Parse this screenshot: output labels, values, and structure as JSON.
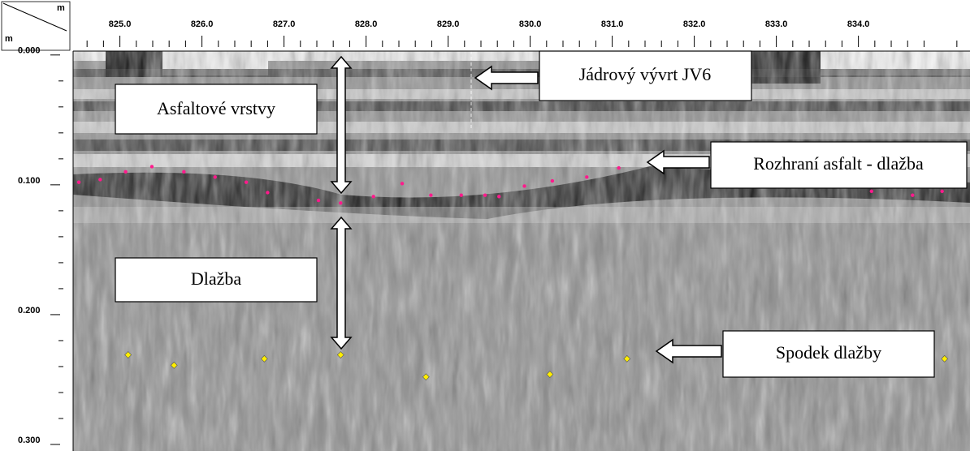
{
  "chart_data": {
    "type": "scatter",
    "x_label": "m",
    "y_label": "m",
    "xlim": [
      824.43,
      835.36
    ],
    "ylim": [
      -0.003,
      0.305
    ],
    "y_inverted": true,
    "xticks": [
      {
        "value": 825,
        "label": "825.0"
      },
      {
        "value": 826,
        "label": "826.0"
      },
      {
        "value": 827,
        "label": "827.0"
      },
      {
        "value": 828,
        "label": "828.0"
      },
      {
        "value": 829,
        "label": "829.0"
      },
      {
        "value": 830,
        "label": "830.0"
      },
      {
        "value": 831,
        "label": "831.0"
      },
      {
        "value": 832,
        "label": "832.0"
      },
      {
        "value": 833,
        "label": "833.0"
      },
      {
        "value": 834,
        "label": "834.0"
      }
    ],
    "xminorticks": [
      824.6,
      824.8,
      825.2,
      825.4,
      825.6,
      825.8,
      826.2,
      826.4,
      826.6,
      826.8,
      827.2,
      827.4,
      827.6,
      827.8,
      828.2,
      828.4,
      828.6,
      828.8,
      829.2,
      829.4,
      829.6,
      829.8,
      830.2,
      830.4,
      830.6,
      830.8,
      831.2,
      831.4,
      831.6,
      831.8,
      832.2,
      832.4,
      832.6,
      832.8,
      833.2,
      833.4,
      833.6,
      833.8,
      834.2,
      834.4,
      834.6,
      834.8,
      835.2
    ],
    "yticks": [
      {
        "value": 0,
        "label": "0.000"
      },
      {
        "value": 0.1,
        "label": "0.100"
      },
      {
        "value": 0.2,
        "label": "0.200"
      },
      {
        "value": 0.3,
        "label": "0.300"
      }
    ],
    "yminorticks": [
      0.02,
      0.04,
      0.06,
      0.08,
      0.12,
      0.14,
      0.16,
      0.18,
      0.22,
      0.24,
      0.26,
      0.28
    ],
    "series": [
      {
        "color": "#ff1a8c",
        "x": [
          824.5,
          824.76,
          825.07,
          825.39,
          825.78,
          826.16,
          826.54,
          826.8,
          827.42,
          827.69,
          828.09,
          828.44,
          828.79,
          829.16,
          829.45,
          829.62,
          829.93,
          830.27,
          830.69,
          831.08,
          834.16,
          834.66,
          835.02
        ],
        "values": [
          0.098,
          0.096,
          0.09,
          0.086,
          0.09,
          0.094,
          0.098,
          0.106,
          0.112,
          0.114,
          0.109,
          0.099,
          0.108,
          0.108,
          0.108,
          0.109,
          0.101,
          0.097,
          0.094,
          0.087,
          0.105,
          0.108,
          0.105
        ]
      },
      {
        "color": "#ffee00",
        "x": [
          825.1,
          825.66,
          826.76,
          827.69,
          828.73,
          830.24,
          831.18,
          835.05
        ],
        "values": [
          0.231,
          0.239,
          0.234,
          0.231,
          0.248,
          0.246,
          0.234,
          0.234
        ]
      }
    ],
    "annotations": [
      "Asfaltové vrstvy",
      "Jádrový vývrt JV6",
      "Rozhraní asfalt - dlažba",
      "Dlažba",
      "Spodek dlažby"
    ]
  }
}
